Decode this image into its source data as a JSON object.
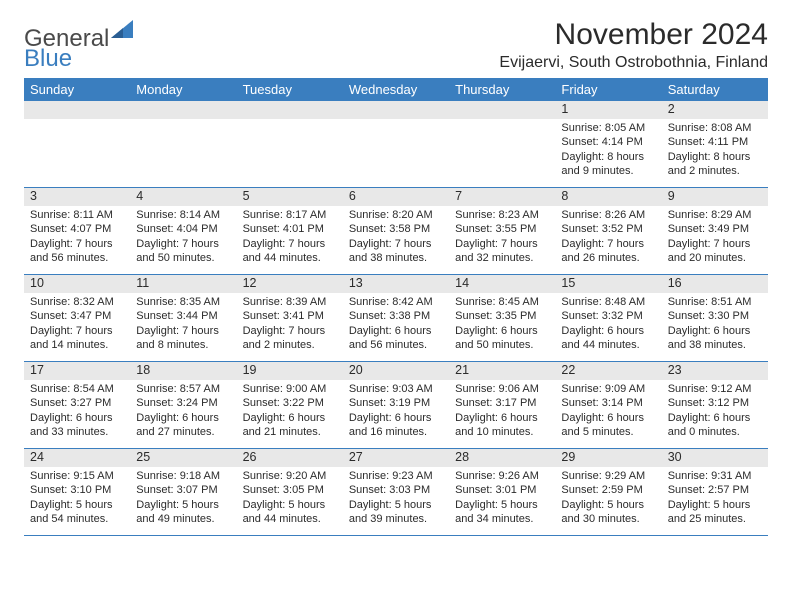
{
  "brand": {
    "part1": "General",
    "part2": "Blue"
  },
  "title": "November 2024",
  "location": "Evijaervi, South Ostrobothnia, Finland",
  "colors": {
    "accent": "#3a7ebf",
    "band": "#e8e8e8",
    "text": "#2b2b2b",
    "bg": "#ffffff"
  },
  "dow": [
    "Sunday",
    "Monday",
    "Tuesday",
    "Wednesday",
    "Thursday",
    "Friday",
    "Saturday"
  ],
  "weeks": [
    [
      null,
      null,
      null,
      null,
      null,
      {
        "n": "1",
        "sr": "Sunrise: 8:05 AM",
        "ss": "Sunset: 4:14 PM",
        "dl": "Daylight: 8 hours and 9 minutes."
      },
      {
        "n": "2",
        "sr": "Sunrise: 8:08 AM",
        "ss": "Sunset: 4:11 PM",
        "dl": "Daylight: 8 hours and 2 minutes."
      }
    ],
    [
      {
        "n": "3",
        "sr": "Sunrise: 8:11 AM",
        "ss": "Sunset: 4:07 PM",
        "dl": "Daylight: 7 hours and 56 minutes."
      },
      {
        "n": "4",
        "sr": "Sunrise: 8:14 AM",
        "ss": "Sunset: 4:04 PM",
        "dl": "Daylight: 7 hours and 50 minutes."
      },
      {
        "n": "5",
        "sr": "Sunrise: 8:17 AM",
        "ss": "Sunset: 4:01 PM",
        "dl": "Daylight: 7 hours and 44 minutes."
      },
      {
        "n": "6",
        "sr": "Sunrise: 8:20 AM",
        "ss": "Sunset: 3:58 PM",
        "dl": "Daylight: 7 hours and 38 minutes."
      },
      {
        "n": "7",
        "sr": "Sunrise: 8:23 AM",
        "ss": "Sunset: 3:55 PM",
        "dl": "Daylight: 7 hours and 32 minutes."
      },
      {
        "n": "8",
        "sr": "Sunrise: 8:26 AM",
        "ss": "Sunset: 3:52 PM",
        "dl": "Daylight: 7 hours and 26 minutes."
      },
      {
        "n": "9",
        "sr": "Sunrise: 8:29 AM",
        "ss": "Sunset: 3:49 PM",
        "dl": "Daylight: 7 hours and 20 minutes."
      }
    ],
    [
      {
        "n": "10",
        "sr": "Sunrise: 8:32 AM",
        "ss": "Sunset: 3:47 PM",
        "dl": "Daylight: 7 hours and 14 minutes."
      },
      {
        "n": "11",
        "sr": "Sunrise: 8:35 AM",
        "ss": "Sunset: 3:44 PM",
        "dl": "Daylight: 7 hours and 8 minutes."
      },
      {
        "n": "12",
        "sr": "Sunrise: 8:39 AM",
        "ss": "Sunset: 3:41 PM",
        "dl": "Daylight: 7 hours and 2 minutes."
      },
      {
        "n": "13",
        "sr": "Sunrise: 8:42 AM",
        "ss": "Sunset: 3:38 PM",
        "dl": "Daylight: 6 hours and 56 minutes."
      },
      {
        "n": "14",
        "sr": "Sunrise: 8:45 AM",
        "ss": "Sunset: 3:35 PM",
        "dl": "Daylight: 6 hours and 50 minutes."
      },
      {
        "n": "15",
        "sr": "Sunrise: 8:48 AM",
        "ss": "Sunset: 3:32 PM",
        "dl": "Daylight: 6 hours and 44 minutes."
      },
      {
        "n": "16",
        "sr": "Sunrise: 8:51 AM",
        "ss": "Sunset: 3:30 PM",
        "dl": "Daylight: 6 hours and 38 minutes."
      }
    ],
    [
      {
        "n": "17",
        "sr": "Sunrise: 8:54 AM",
        "ss": "Sunset: 3:27 PM",
        "dl": "Daylight: 6 hours and 33 minutes."
      },
      {
        "n": "18",
        "sr": "Sunrise: 8:57 AM",
        "ss": "Sunset: 3:24 PM",
        "dl": "Daylight: 6 hours and 27 minutes."
      },
      {
        "n": "19",
        "sr": "Sunrise: 9:00 AM",
        "ss": "Sunset: 3:22 PM",
        "dl": "Daylight: 6 hours and 21 minutes."
      },
      {
        "n": "20",
        "sr": "Sunrise: 9:03 AM",
        "ss": "Sunset: 3:19 PM",
        "dl": "Daylight: 6 hours and 16 minutes."
      },
      {
        "n": "21",
        "sr": "Sunrise: 9:06 AM",
        "ss": "Sunset: 3:17 PM",
        "dl": "Daylight: 6 hours and 10 minutes."
      },
      {
        "n": "22",
        "sr": "Sunrise: 9:09 AM",
        "ss": "Sunset: 3:14 PM",
        "dl": "Daylight: 6 hours and 5 minutes."
      },
      {
        "n": "23",
        "sr": "Sunrise: 9:12 AM",
        "ss": "Sunset: 3:12 PM",
        "dl": "Daylight: 6 hours and 0 minutes."
      }
    ],
    [
      {
        "n": "24",
        "sr": "Sunrise: 9:15 AM",
        "ss": "Sunset: 3:10 PM",
        "dl": "Daylight: 5 hours and 54 minutes."
      },
      {
        "n": "25",
        "sr": "Sunrise: 9:18 AM",
        "ss": "Sunset: 3:07 PM",
        "dl": "Daylight: 5 hours and 49 minutes."
      },
      {
        "n": "26",
        "sr": "Sunrise: 9:20 AM",
        "ss": "Sunset: 3:05 PM",
        "dl": "Daylight: 5 hours and 44 minutes."
      },
      {
        "n": "27",
        "sr": "Sunrise: 9:23 AM",
        "ss": "Sunset: 3:03 PM",
        "dl": "Daylight: 5 hours and 39 minutes."
      },
      {
        "n": "28",
        "sr": "Sunrise: 9:26 AM",
        "ss": "Sunset: 3:01 PM",
        "dl": "Daylight: 5 hours and 34 minutes."
      },
      {
        "n": "29",
        "sr": "Sunrise: 9:29 AM",
        "ss": "Sunset: 2:59 PM",
        "dl": "Daylight: 5 hours and 30 minutes."
      },
      {
        "n": "30",
        "sr": "Sunrise: 9:31 AM",
        "ss": "Sunset: 2:57 PM",
        "dl": "Daylight: 5 hours and 25 minutes."
      }
    ]
  ]
}
